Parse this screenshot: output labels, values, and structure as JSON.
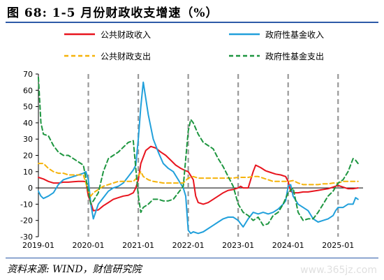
{
  "figure_title": "图 68:  1-5 月份财政收支增速（%）",
  "source": "资料来源: WIND，财信研究院",
  "watermark": "www.365jz.com",
  "chart_data": {
    "type": "line",
    "title": "",
    "xlabel": "",
    "ylabel": "",
    "ylim": [
      -30,
      70
    ],
    "yticks": [
      -30,
      -20,
      -10,
      0,
      10,
      20,
      30,
      40,
      50,
      60,
      70
    ],
    "xlim": [
      2019.0,
      2025.5
    ],
    "xticks": [
      {
        "x": 2019,
        "label": "2019-01"
      },
      {
        "x": 2020,
        "label": "2020-01"
      },
      {
        "x": 2021,
        "label": "2021-01"
      },
      {
        "x": 2022,
        "label": "2022-01"
      },
      {
        "x": 2023,
        "label": "2023-01"
      },
      {
        "x": 2024,
        "label": "2024-01"
      },
      {
        "x": 2025,
        "label": "2025-01"
      }
    ],
    "vlines": [
      2020,
      2021,
      2022,
      2023,
      2024,
      2025
    ],
    "legend_position": "top",
    "series": [
      {
        "name": "公共财政收入",
        "color": "#e8141e",
        "dash": "solid",
        "points": [
          [
            2019.0,
            6.5
          ],
          [
            2019.1,
            5.5
          ],
          [
            2019.2,
            4
          ],
          [
            2019.3,
            3
          ],
          [
            2019.4,
            3
          ],
          [
            2019.5,
            3.5
          ],
          [
            2019.6,
            3.5
          ],
          [
            2019.7,
            3.8
          ],
          [
            2019.8,
            4
          ],
          [
            2019.9,
            4
          ],
          [
            2019.95,
            3.8
          ],
          [
            2020.0,
            -5
          ],
          [
            2020.05,
            -9
          ],
          [
            2020.1,
            -14
          ],
          [
            2020.2,
            -13.5
          ],
          [
            2020.3,
            -11
          ],
          [
            2020.4,
            -9
          ],
          [
            2020.5,
            -7
          ],
          [
            2020.6,
            -6
          ],
          [
            2020.7,
            -5
          ],
          [
            2020.8,
            -4.5
          ],
          [
            2020.9,
            -3
          ],
          [
            2020.95,
            0
          ],
          [
            2021.0,
            5
          ],
          [
            2021.05,
            15
          ],
          [
            2021.15,
            23
          ],
          [
            2021.25,
            25.5
          ],
          [
            2021.35,
            24.5
          ],
          [
            2021.45,
            22
          ],
          [
            2021.55,
            20
          ],
          [
            2021.65,
            17
          ],
          [
            2021.75,
            14
          ],
          [
            2021.85,
            12
          ],
          [
            2021.95,
            10.5
          ],
          [
            2022.0,
            10
          ],
          [
            2022.1,
            5
          ],
          [
            2022.15,
            -5
          ],
          [
            2022.2,
            -9
          ],
          [
            2022.3,
            -10
          ],
          [
            2022.4,
            -9
          ],
          [
            2022.5,
            -7
          ],
          [
            2022.6,
            -5
          ],
          [
            2022.7,
            -3
          ],
          [
            2022.8,
            -1.5
          ],
          [
            2022.9,
            -1
          ],
          [
            2023.0,
            0
          ],
          [
            2023.05,
            1
          ],
          [
            2023.1,
            0
          ],
          [
            2023.2,
            0
          ],
          [
            2023.3,
            10
          ],
          [
            2023.35,
            14
          ],
          [
            2023.45,
            12.5
          ],
          [
            2023.55,
            10.5
          ],
          [
            2023.65,
            9.5
          ],
          [
            2023.75,
            8.5
          ],
          [
            2023.85,
            8
          ],
          [
            2023.95,
            7
          ],
          [
            2024.0,
            4
          ],
          [
            2024.05,
            -2
          ],
          [
            2024.1,
            -3
          ],
          [
            2024.2,
            -3
          ],
          [
            2024.3,
            -2.5
          ],
          [
            2024.4,
            -2.5
          ],
          [
            2024.5,
            -2
          ],
          [
            2024.6,
            -1.5
          ],
          [
            2024.7,
            -1
          ],
          [
            2024.8,
            -0.5
          ],
          [
            2024.9,
            0.5
          ],
          [
            2025.0,
            1.5
          ],
          [
            2025.1,
            0.5
          ],
          [
            2025.2,
            -0.5
          ],
          [
            2025.3,
            -0.5
          ],
          [
            2025.4,
            0
          ]
        ]
      },
      {
        "name": "政府性基金收入",
        "color": "#21a0db",
        "dash": "solid",
        "points": [
          [
            2019.0,
            -2
          ],
          [
            2019.05,
            -5
          ],
          [
            2019.1,
            -6.5
          ],
          [
            2019.2,
            -5
          ],
          [
            2019.3,
            -3
          ],
          [
            2019.4,
            2
          ],
          [
            2019.5,
            5
          ],
          [
            2019.6,
            6
          ],
          [
            2019.7,
            7
          ],
          [
            2019.8,
            8
          ],
          [
            2019.9,
            9
          ],
          [
            2019.95,
            10
          ],
          [
            2020.0,
            5
          ],
          [
            2020.05,
            -10
          ],
          [
            2020.1,
            -19
          ],
          [
            2020.2,
            -10
          ],
          [
            2020.3,
            -6
          ],
          [
            2020.4,
            -2
          ],
          [
            2020.5,
            0
          ],
          [
            2020.6,
            1
          ],
          [
            2020.7,
            3
          ],
          [
            2020.8,
            7
          ],
          [
            2020.9,
            11
          ],
          [
            2020.95,
            14
          ],
          [
            2021.0,
            30
          ],
          [
            2021.05,
            50
          ],
          [
            2021.1,
            65
          ],
          [
            2021.2,
            45
          ],
          [
            2021.3,
            30
          ],
          [
            2021.4,
            22
          ],
          [
            2021.5,
            15
          ],
          [
            2021.6,
            12
          ],
          [
            2021.7,
            10
          ],
          [
            2021.8,
            5
          ],
          [
            2021.9,
            0
          ],
          [
            2021.95,
            -5
          ],
          [
            2022.0,
            -26
          ],
          [
            2022.05,
            -28
          ],
          [
            2022.1,
            -27
          ],
          [
            2022.2,
            -28
          ],
          [
            2022.3,
            -27
          ],
          [
            2022.4,
            -25
          ],
          [
            2022.5,
            -23
          ],
          [
            2022.6,
            -21
          ],
          [
            2022.7,
            -19
          ],
          [
            2022.8,
            -18
          ],
          [
            2022.9,
            -18
          ],
          [
            2023.0,
            -20
          ],
          [
            2023.05,
            -22
          ],
          [
            2023.1,
            -24
          ],
          [
            2023.2,
            -19
          ],
          [
            2023.3,
            -15
          ],
          [
            2023.4,
            -16
          ],
          [
            2023.5,
            -15
          ],
          [
            2023.6,
            -16
          ],
          [
            2023.7,
            -15
          ],
          [
            2023.8,
            -13
          ],
          [
            2023.9,
            -10
          ],
          [
            2023.95,
            -8
          ],
          [
            2024.0,
            1
          ],
          [
            2024.05,
            2
          ],
          [
            2024.1,
            -5
          ],
          [
            2024.2,
            -10
          ],
          [
            2024.3,
            -12
          ],
          [
            2024.4,
            -14
          ],
          [
            2024.5,
            -19
          ],
          [
            2024.6,
            -21
          ],
          [
            2024.7,
            -20
          ],
          [
            2024.8,
            -19
          ],
          [
            2024.9,
            -17
          ],
          [
            2024.95,
            -14
          ],
          [
            2025.0,
            -12
          ],
          [
            2025.1,
            -12
          ],
          [
            2025.2,
            -10
          ],
          [
            2025.3,
            -10
          ],
          [
            2025.35,
            -6
          ],
          [
            2025.4,
            -7
          ]
        ]
      },
      {
        "name": "公共财政支出",
        "color": "#f5b30a",
        "dash": "dashed",
        "points": [
          [
            2019.0,
            15
          ],
          [
            2019.1,
            15
          ],
          [
            2019.2,
            12
          ],
          [
            2019.3,
            10
          ],
          [
            2019.4,
            9
          ],
          [
            2019.5,
            9
          ],
          [
            2019.6,
            8
          ],
          [
            2019.7,
            8
          ],
          [
            2019.8,
            8
          ],
          [
            2019.9,
            8
          ],
          [
            2020.0,
            -2
          ],
          [
            2020.05,
            -5
          ],
          [
            2020.1,
            -3
          ],
          [
            2020.2,
            -1
          ],
          [
            2020.3,
            1
          ],
          [
            2020.4,
            2
          ],
          [
            2020.5,
            3
          ],
          [
            2020.6,
            4
          ],
          [
            2020.7,
            4
          ],
          [
            2020.8,
            4
          ],
          [
            2020.9,
            4
          ],
          [
            2021.0,
            7
          ],
          [
            2021.05,
            10
          ],
          [
            2021.1,
            7
          ],
          [
            2021.2,
            5
          ],
          [
            2021.3,
            4
          ],
          [
            2021.4,
            3.5
          ],
          [
            2021.5,
            3
          ],
          [
            2021.6,
            3
          ],
          [
            2021.7,
            3
          ],
          [
            2021.8,
            3
          ],
          [
            2021.9,
            3
          ],
          [
            2022.0,
            6
          ],
          [
            2022.1,
            7
          ],
          [
            2022.2,
            6
          ],
          [
            2022.3,
            6
          ],
          [
            2022.4,
            6
          ],
          [
            2022.5,
            6
          ],
          [
            2022.6,
            6
          ],
          [
            2022.7,
            6
          ],
          [
            2022.8,
            6
          ],
          [
            2022.9,
            6
          ],
          [
            2023.0,
            6.5
          ],
          [
            2023.1,
            6.5
          ],
          [
            2023.2,
            6.5
          ],
          [
            2023.3,
            7
          ],
          [
            2023.4,
            7
          ],
          [
            2023.5,
            6
          ],
          [
            2023.6,
            5
          ],
          [
            2023.7,
            4
          ],
          [
            2023.8,
            4
          ],
          [
            2023.9,
            4
          ],
          [
            2024.0,
            4
          ],
          [
            2024.1,
            4.5
          ],
          [
            2024.2,
            3
          ],
          [
            2024.3,
            2
          ],
          [
            2024.4,
            2
          ],
          [
            2024.5,
            2
          ],
          [
            2024.6,
            2
          ],
          [
            2024.7,
            2.5
          ],
          [
            2024.8,
            2.5
          ],
          [
            2024.9,
            3
          ],
          [
            2025.0,
            3
          ],
          [
            2025.1,
            4
          ],
          [
            2025.2,
            4
          ],
          [
            2025.3,
            4
          ],
          [
            2025.4,
            4
          ]
        ]
      },
      {
        "name": "政府性基金支出",
        "color": "#1e9640",
        "dash": "dashed",
        "points": [
          [
            2019.0,
            68
          ],
          [
            2019.05,
            40
          ],
          [
            2019.1,
            33
          ],
          [
            2019.2,
            32
          ],
          [
            2019.3,
            26
          ],
          [
            2019.4,
            22
          ],
          [
            2019.5,
            20
          ],
          [
            2019.6,
            20
          ],
          [
            2019.7,
            18
          ],
          [
            2019.8,
            16
          ],
          [
            2019.9,
            14
          ],
          [
            2020.0,
            -2
          ],
          [
            2020.05,
            -10
          ],
          [
            2020.1,
            -8
          ],
          [
            2020.2,
            -3
          ],
          [
            2020.3,
            10
          ],
          [
            2020.4,
            18
          ],
          [
            2020.5,
            20
          ],
          [
            2020.6,
            22
          ],
          [
            2020.7,
            25
          ],
          [
            2020.8,
            28
          ],
          [
            2020.9,
            29
          ],
          [
            2021.0,
            -5
          ],
          [
            2021.05,
            -15
          ],
          [
            2021.1,
            -12
          ],
          [
            2021.2,
            -10
          ],
          [
            2021.3,
            -7
          ],
          [
            2021.4,
            -7
          ],
          [
            2021.5,
            -8
          ],
          [
            2021.6,
            -8
          ],
          [
            2021.7,
            -7
          ],
          [
            2021.8,
            -3
          ],
          [
            2021.9,
            1
          ],
          [
            2022.0,
            35
          ],
          [
            2022.05,
            42
          ],
          [
            2022.1,
            40
          ],
          [
            2022.2,
            33
          ],
          [
            2022.3,
            28
          ],
          [
            2022.4,
            26
          ],
          [
            2022.5,
            24
          ],
          [
            2022.6,
            18
          ],
          [
            2022.7,
            13
          ],
          [
            2022.8,
            7
          ],
          [
            2022.9,
            1
          ],
          [
            2023.0,
            -10
          ],
          [
            2023.1,
            -15
          ],
          [
            2023.2,
            -17
          ],
          [
            2023.3,
            -20
          ],
          [
            2023.4,
            -18
          ],
          [
            2023.5,
            -23
          ],
          [
            2023.6,
            -22
          ],
          [
            2023.7,
            -17
          ],
          [
            2023.8,
            -15
          ],
          [
            2023.9,
            -10
          ],
          [
            2024.0,
            -3
          ],
          [
            2024.1,
            0
          ],
          [
            2024.2,
            -15
          ],
          [
            2024.3,
            -20
          ],
          [
            2024.4,
            -19
          ],
          [
            2024.5,
            -19
          ],
          [
            2024.6,
            -15
          ],
          [
            2024.7,
            -10
          ],
          [
            2024.8,
            -5
          ],
          [
            2024.9,
            -2
          ],
          [
            2025.0,
            3
          ],
          [
            2025.1,
            5
          ],
          [
            2025.2,
            10
          ],
          [
            2025.3,
            18
          ],
          [
            2025.35,
            17
          ],
          [
            2025.4,
            15
          ]
        ]
      }
    ]
  }
}
